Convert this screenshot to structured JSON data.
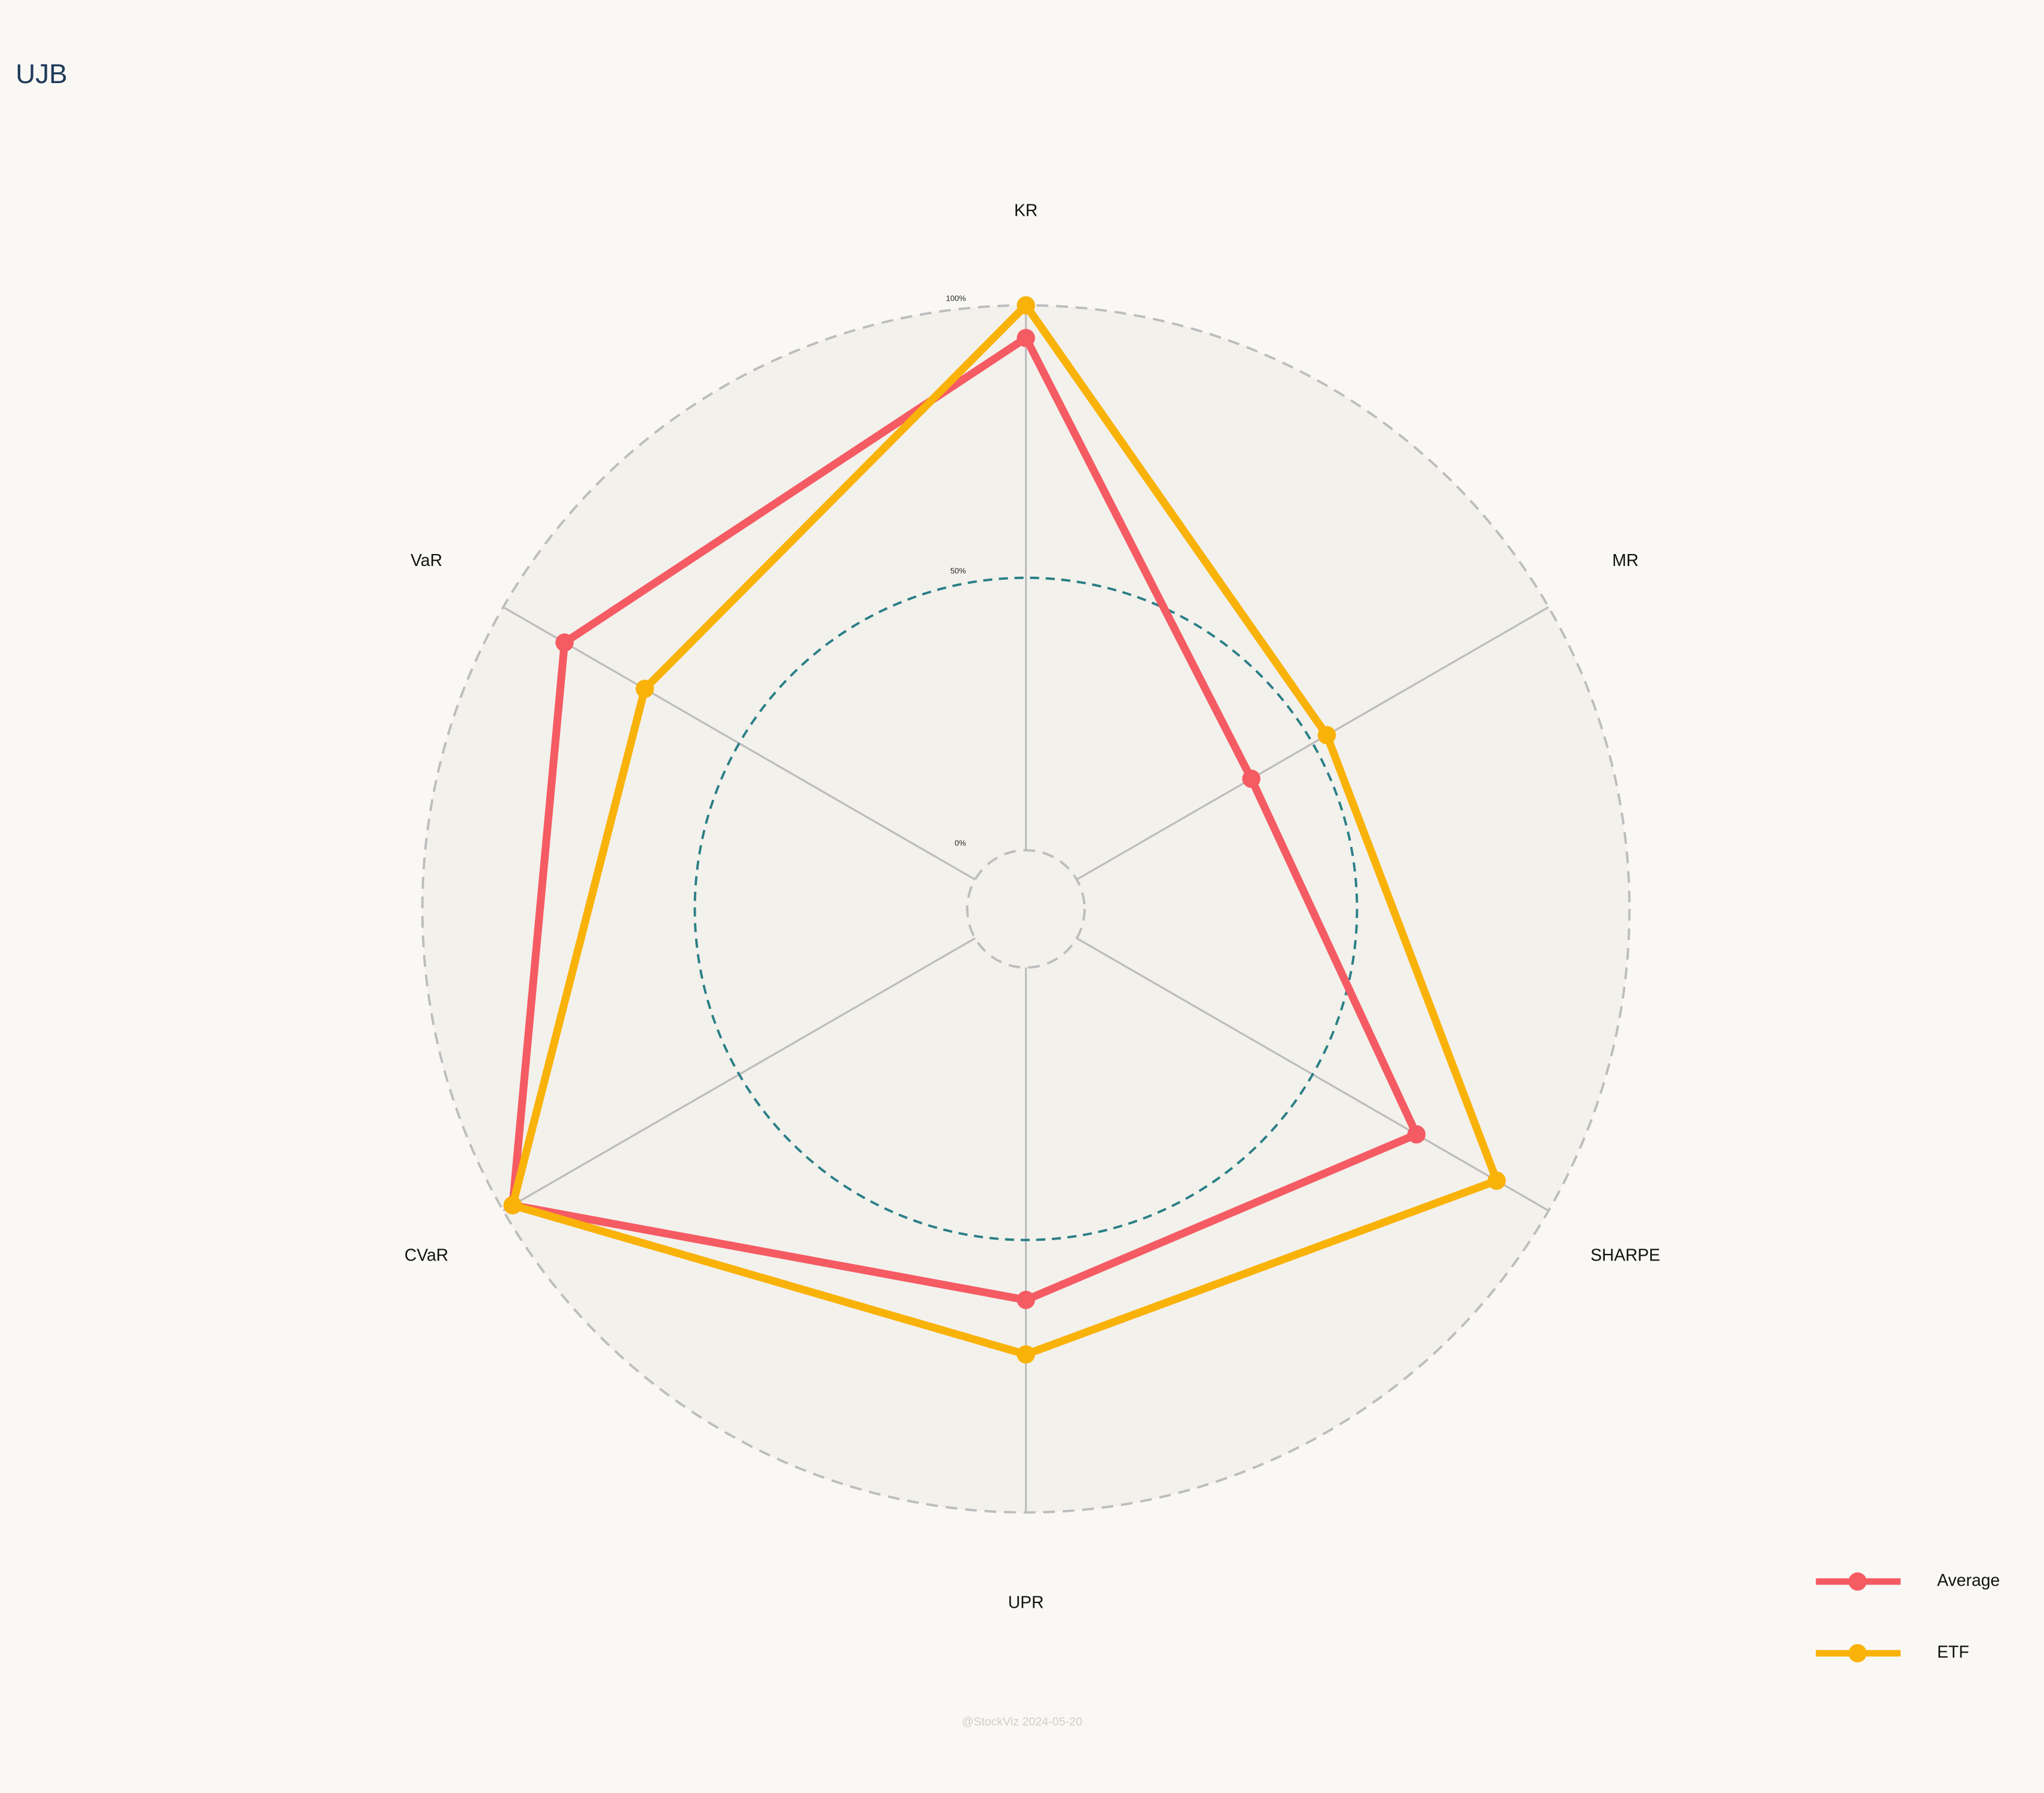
{
  "chart_data": {
    "type": "radar",
    "title": "UJB",
    "footer": "@StockViz 2024-05-20",
    "categories": [
      "KR",
      "MR",
      "SHARPE",
      "UPR",
      "CVaR",
      "VaR"
    ],
    "series": [
      {
        "name": "Average",
        "color": "#f55b63",
        "values": [
          94,
          37,
          72,
          61,
          98,
          87
        ]
      },
      {
        "name": "ETF",
        "color": "#f9b208",
        "values": [
          100,
          53,
          89,
          71,
          98,
          70
        ]
      }
    ],
    "rlim": [
      0,
      100
    ],
    "rticks": [
      {
        "value": 0,
        "label": "0%"
      },
      {
        "value": 50,
        "label": "50%"
      },
      {
        "value": 100,
        "label": "100%"
      }
    ],
    "legend": "bottom-right"
  }
}
